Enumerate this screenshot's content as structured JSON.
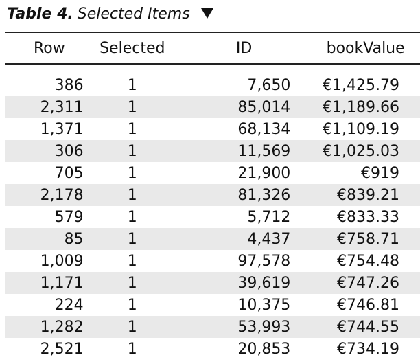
{
  "title": {
    "label": "Table 4.",
    "text": "Selected Items"
  },
  "icons": {
    "dropdown": "triangle-down-icon"
  },
  "columns": [
    "Row",
    "Selected",
    "ID",
    "bookValue"
  ],
  "rows": [
    [
      "386",
      "1",
      "7,650",
      "€1,425.79"
    ],
    [
      "2,311",
      "1",
      "85,014",
      "€1,189.66"
    ],
    [
      "1,371",
      "1",
      "68,134",
      "€1,109.19"
    ],
    [
      "306",
      "1",
      "11,569",
      "€1,025.03"
    ],
    [
      "705",
      "1",
      "21,900",
      "€919"
    ],
    [
      "2,178",
      "1",
      "81,326",
      "€839.21"
    ],
    [
      "579",
      "1",
      "5,712",
      "€833.33"
    ],
    [
      "85",
      "1",
      "4,437",
      "€758.71"
    ],
    [
      "1,009",
      "1",
      "97,578",
      "€754.48"
    ],
    [
      "1,171",
      "1",
      "39,619",
      "€747.26"
    ],
    [
      "224",
      "1",
      "10,375",
      "€746.81"
    ],
    [
      "1,282",
      "1",
      "53,993",
      "€744.55"
    ],
    [
      "2,521",
      "1",
      "20,853",
      "€734.19"
    ]
  ]
}
